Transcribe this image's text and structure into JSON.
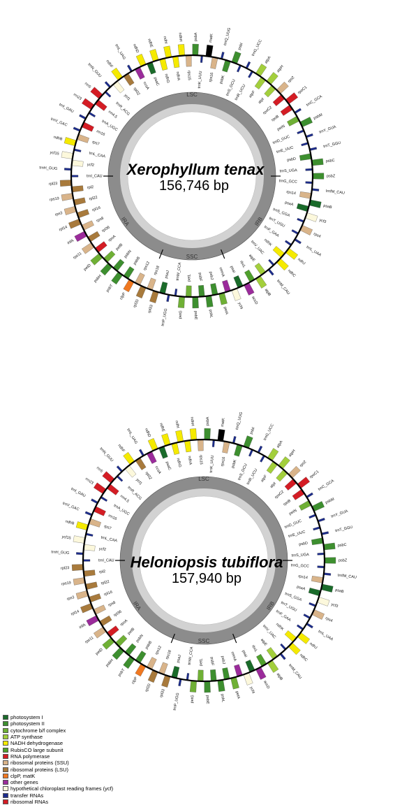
{
  "genomes": [
    {
      "title": "Xerophyllum tenax",
      "size": "156,746 bp",
      "regions": [
        "LSC",
        "IRB",
        "SSC",
        "IRA"
      ],
      "genes": [
        {
          "name": "psbA",
          "cat": "psII"
        },
        {
          "name": "trnK_UUU",
          "cat": "trna"
        },
        {
          "name": "matK",
          "cat": "matk"
        },
        {
          "name": "rps16",
          "cat": "rps"
        },
        {
          "name": "trnQ_UUG",
          "cat": "trna"
        },
        {
          "name": "psbK",
          "cat": "psII"
        },
        {
          "name": "psbI",
          "cat": "psII"
        },
        {
          "name": "trnS_GCU",
          "cat": "trna"
        },
        {
          "name": "trnG_UCC",
          "cat": "trna"
        },
        {
          "name": "trnR_UCU",
          "cat": "trna"
        },
        {
          "name": "atpA",
          "cat": "atp"
        },
        {
          "name": "atpF",
          "cat": "atp"
        },
        {
          "name": "atpH",
          "cat": "atp"
        },
        {
          "name": "atpI",
          "cat": "atp"
        },
        {
          "name": "rps2",
          "cat": "rps"
        },
        {
          "name": "rpoC2",
          "cat": "rpo"
        },
        {
          "name": "rpoC1",
          "cat": "rpo"
        },
        {
          "name": "rpoB",
          "cat": "rpo"
        },
        {
          "name": "trnC_GCA",
          "cat": "trna"
        },
        {
          "name": "petN",
          "cat": "cyt"
        },
        {
          "name": "psbM",
          "cat": "psII"
        },
        {
          "name": "trnD_GUC",
          "cat": "trna"
        },
        {
          "name": "trnY_GUA",
          "cat": "trna"
        },
        {
          "name": "trnE_UUC",
          "cat": "trna"
        },
        {
          "name": "trnT_GGU",
          "cat": "trna"
        },
        {
          "name": "psbD",
          "cat": "psII"
        },
        {
          "name": "psbC",
          "cat": "psII"
        },
        {
          "name": "trnS_UGA",
          "cat": "trna"
        },
        {
          "name": "psbZ",
          "cat": "psII"
        },
        {
          "name": "trnG_GCC",
          "cat": "trna"
        },
        {
          "name": "trnfM_CAU",
          "cat": "trna"
        },
        {
          "name": "rps14",
          "cat": "rps"
        },
        {
          "name": "psaB",
          "cat": "psI"
        },
        {
          "name": "psaA",
          "cat": "psI"
        },
        {
          "name": "ycf3",
          "cat": "ycf"
        },
        {
          "name": "trnS_GGA",
          "cat": "trna"
        },
        {
          "name": "rps4",
          "cat": "rps"
        },
        {
          "name": "trnT_UGU",
          "cat": "trna"
        },
        {
          "name": "trnL_UAA",
          "cat": "trna"
        },
        {
          "name": "trnF_GAA",
          "cat": "trna"
        },
        {
          "name": "ndhJ",
          "cat": "ndh"
        },
        {
          "name": "ndhK",
          "cat": "ndh"
        },
        {
          "name": "ndhC",
          "cat": "ndh"
        },
        {
          "name": "trnV_UAC",
          "cat": "trna"
        },
        {
          "name": "trnM_CAU",
          "cat": "trna"
        },
        {
          "name": "atpE",
          "cat": "atp"
        },
        {
          "name": "atpB",
          "cat": "atp"
        },
        {
          "name": "rbcL",
          "cat": "rbcl"
        },
        {
          "name": "accD",
          "cat": "other"
        },
        {
          "name": "psaI",
          "cat": "psI"
        },
        {
          "name": "ycf4",
          "cat": "ycf"
        },
        {
          "name": "cemA",
          "cat": "other"
        },
        {
          "name": "petA",
          "cat": "cyt"
        },
        {
          "name": "psbJ",
          "cat": "psII"
        },
        {
          "name": "psbL",
          "cat": "psII"
        },
        {
          "name": "psbF",
          "cat": "psII"
        },
        {
          "name": "psbE",
          "cat": "psII"
        },
        {
          "name": "petL",
          "cat": "cyt"
        },
        {
          "name": "petG",
          "cat": "cyt"
        },
        {
          "name": "trnW_CCA",
          "cat": "trna"
        },
        {
          "name": "trnP_UGG",
          "cat": "trna"
        },
        {
          "name": "psaJ",
          "cat": "psI"
        },
        {
          "name": "rpl33",
          "cat": "rpl"
        },
        {
          "name": "rps18",
          "cat": "rps"
        },
        {
          "name": "rpl20",
          "cat": "rpl"
        },
        {
          "name": "rps12",
          "cat": "rps"
        },
        {
          "name": "clpP",
          "cat": "clpp"
        },
        {
          "name": "psbB",
          "cat": "psII"
        },
        {
          "name": "psbT",
          "cat": "psII"
        },
        {
          "name": "psbN",
          "cat": "psII"
        },
        {
          "name": "psbH",
          "cat": "psII"
        },
        {
          "name": "petB",
          "cat": "cyt"
        },
        {
          "name": "petD",
          "cat": "cyt"
        },
        {
          "name": "rpoA",
          "cat": "rpo"
        },
        {
          "name": "rps11",
          "cat": "rps"
        },
        {
          "name": "rpl36",
          "cat": "rpl"
        },
        {
          "name": "infA",
          "cat": "other"
        },
        {
          "name": "rps8",
          "cat": "rps"
        },
        {
          "name": "rpl14",
          "cat": "rpl"
        },
        {
          "name": "rpl16",
          "cat": "rpl"
        },
        {
          "name": "rps3",
          "cat": "rps"
        },
        {
          "name": "rpl22",
          "cat": "rpl"
        },
        {
          "name": "rps19",
          "cat": "rps"
        },
        {
          "name": "rpl2",
          "cat": "rpl"
        },
        {
          "name": "rpl23",
          "cat": "rpl"
        },
        {
          "name": "trnI_CAU",
          "cat": "trna"
        },
        {
          "name": "trnH_GUG",
          "cat": "trna"
        },
        {
          "name": "ycf2",
          "cat": "ycf"
        },
        {
          "name": "ycf15",
          "cat": "ycf"
        },
        {
          "name": "trnL_CAA",
          "cat": "trna"
        },
        {
          "name": "ndhB",
          "cat": "ndh"
        },
        {
          "name": "rps7",
          "cat": "rps"
        },
        {
          "name": "trnV_GAC",
          "cat": "trna"
        },
        {
          "name": "rrn16",
          "cat": "rrna"
        },
        {
          "name": "trnI_GAU",
          "cat": "trna"
        },
        {
          "name": "trnA_UGC",
          "cat": "trna"
        },
        {
          "name": "rrn23",
          "cat": "rrna"
        },
        {
          "name": "rrn4.5",
          "cat": "rrna"
        },
        {
          "name": "rrn5",
          "cat": "rrna"
        },
        {
          "name": "trnR_ACG",
          "cat": "trna"
        },
        {
          "name": "trnN_GUU",
          "cat": "trna"
        },
        {
          "name": "ycf1",
          "cat": "ycf"
        },
        {
          "name": "ndhF",
          "cat": "ndh"
        },
        {
          "name": "rpl32",
          "cat": "rpl"
        },
        {
          "name": "trnL_UAG",
          "cat": "trna"
        },
        {
          "name": "ccsA",
          "cat": "other"
        },
        {
          "name": "ndhD",
          "cat": "ndh"
        },
        {
          "name": "psaC",
          "cat": "psI"
        },
        {
          "name": "ndhE",
          "cat": "ndh"
        },
        {
          "name": "ndhG",
          "cat": "ndh"
        },
        {
          "name": "ndhI",
          "cat": "ndh"
        },
        {
          "name": "ndhA",
          "cat": "ndh"
        },
        {
          "name": "ndhH",
          "cat": "ndh"
        },
        {
          "name": "rps15",
          "cat": "rps"
        }
      ]
    },
    {
      "title": "Heloniopsis tubiflora",
      "size": "157,940 bp",
      "regions": [
        "LSC",
        "IRB",
        "SSC",
        "IRA"
      ],
      "genes": [
        {
          "name": "psbA",
          "cat": "psII"
        },
        {
          "name": "trnK_UUU",
          "cat": "trna"
        },
        {
          "name": "matK",
          "cat": "matk"
        },
        {
          "name": "rps16",
          "cat": "rps"
        },
        {
          "name": "trnQ_UUG",
          "cat": "trna"
        },
        {
          "name": "psbK",
          "cat": "psII"
        },
        {
          "name": "psbI",
          "cat": "psII"
        },
        {
          "name": "trnS_GCU",
          "cat": "trna"
        },
        {
          "name": "trnG_UCC",
          "cat": "trna"
        },
        {
          "name": "trnR_UCU",
          "cat": "trna"
        },
        {
          "name": "atpA",
          "cat": "atp"
        },
        {
          "name": "atpF",
          "cat": "atp"
        },
        {
          "name": "atpH",
          "cat": "atp"
        },
        {
          "name": "atpI",
          "cat": "atp"
        },
        {
          "name": "rps2",
          "cat": "rps"
        },
        {
          "name": "rpoC2",
          "cat": "rpo"
        },
        {
          "name": "rpoC1",
          "cat": "rpo"
        },
        {
          "name": "rpoB",
          "cat": "rpo"
        },
        {
          "name": "trnC_GCA",
          "cat": "trna"
        },
        {
          "name": "petN",
          "cat": "cyt"
        },
        {
          "name": "psbM",
          "cat": "psII"
        },
        {
          "name": "trnD_GUC",
          "cat": "trna"
        },
        {
          "name": "trnY_GUA",
          "cat": "trna"
        },
        {
          "name": "trnE_UUC",
          "cat": "trna"
        },
        {
          "name": "trnT_GGU",
          "cat": "trna"
        },
        {
          "name": "psbD",
          "cat": "psII"
        },
        {
          "name": "psbC",
          "cat": "psII"
        },
        {
          "name": "trnS_UGA",
          "cat": "trna"
        },
        {
          "name": "psbZ",
          "cat": "psII"
        },
        {
          "name": "trnG_GCC",
          "cat": "trna"
        },
        {
          "name": "trnfM_CAU",
          "cat": "trna"
        },
        {
          "name": "rps14",
          "cat": "rps"
        },
        {
          "name": "psaB",
          "cat": "psI"
        },
        {
          "name": "psaA",
          "cat": "psI"
        },
        {
          "name": "ycf3",
          "cat": "ycf"
        },
        {
          "name": "trnS_GGA",
          "cat": "trna"
        },
        {
          "name": "rps4",
          "cat": "rps"
        },
        {
          "name": "trnT_UGU",
          "cat": "trna"
        },
        {
          "name": "trnL_UAA",
          "cat": "trna"
        },
        {
          "name": "trnF_GAA",
          "cat": "trna"
        },
        {
          "name": "ndhJ",
          "cat": "ndh"
        },
        {
          "name": "ndhK",
          "cat": "ndh"
        },
        {
          "name": "ndhC",
          "cat": "ndh"
        },
        {
          "name": "trnV_UAC",
          "cat": "trna"
        },
        {
          "name": "trnM_CAU",
          "cat": "trna"
        },
        {
          "name": "atpE",
          "cat": "atp"
        },
        {
          "name": "atpB",
          "cat": "atp"
        },
        {
          "name": "rbcL",
          "cat": "rbcl"
        },
        {
          "name": "accD",
          "cat": "other"
        },
        {
          "name": "psaI",
          "cat": "psI"
        },
        {
          "name": "ycf4",
          "cat": "ycf"
        },
        {
          "name": "cemA",
          "cat": "other"
        },
        {
          "name": "petA",
          "cat": "cyt"
        },
        {
          "name": "psbJ",
          "cat": "psII"
        },
        {
          "name": "psbL",
          "cat": "psII"
        },
        {
          "name": "psbF",
          "cat": "psII"
        },
        {
          "name": "psbE",
          "cat": "psII"
        },
        {
          "name": "petL",
          "cat": "cyt"
        },
        {
          "name": "petG",
          "cat": "cyt"
        },
        {
          "name": "trnW_CCA",
          "cat": "trna"
        },
        {
          "name": "trnP_UGG",
          "cat": "trna"
        },
        {
          "name": "psaJ",
          "cat": "psI"
        },
        {
          "name": "rpl33",
          "cat": "rpl"
        },
        {
          "name": "rps18",
          "cat": "rps"
        },
        {
          "name": "rpl20",
          "cat": "rpl"
        },
        {
          "name": "rps12",
          "cat": "rps"
        },
        {
          "name": "clpP",
          "cat": "clpp"
        },
        {
          "name": "psbB",
          "cat": "psII"
        },
        {
          "name": "psbT",
          "cat": "psII"
        },
        {
          "name": "psbN",
          "cat": "psII"
        },
        {
          "name": "psbH",
          "cat": "psII"
        },
        {
          "name": "petB",
          "cat": "cyt"
        },
        {
          "name": "petD",
          "cat": "cyt"
        },
        {
          "name": "rpoA",
          "cat": "rpo"
        },
        {
          "name": "rps11",
          "cat": "rps"
        },
        {
          "name": "rpl36",
          "cat": "rpl"
        },
        {
          "name": "infA",
          "cat": "other"
        },
        {
          "name": "rps8",
          "cat": "rps"
        },
        {
          "name": "rpl14",
          "cat": "rpl"
        },
        {
          "name": "rpl16",
          "cat": "rpl"
        },
        {
          "name": "rps3",
          "cat": "rps"
        },
        {
          "name": "rpl22",
          "cat": "rpl"
        },
        {
          "name": "rps19",
          "cat": "rps"
        },
        {
          "name": "rpl2",
          "cat": "rpl"
        },
        {
          "name": "rpl23",
          "cat": "rpl"
        },
        {
          "name": "trnI_CAU",
          "cat": "trna"
        },
        {
          "name": "trnH_GUG",
          "cat": "trna"
        },
        {
          "name": "ycf2",
          "cat": "ycf"
        },
        {
          "name": "ycf15",
          "cat": "ycf"
        },
        {
          "name": "trnL_CAA",
          "cat": "trna"
        },
        {
          "name": "ndhB",
          "cat": "ndh"
        },
        {
          "name": "rps7",
          "cat": "rps"
        },
        {
          "name": "trnV_GAC",
          "cat": "trna"
        },
        {
          "name": "rrn16",
          "cat": "rrna"
        },
        {
          "name": "trnI_GAU",
          "cat": "trna"
        },
        {
          "name": "trnA_UGC",
          "cat": "trna"
        },
        {
          "name": "rrn23",
          "cat": "rrna"
        },
        {
          "name": "rrn4.5",
          "cat": "rrna"
        },
        {
          "name": "rrn5",
          "cat": "rrna"
        },
        {
          "name": "trnR_ACG",
          "cat": "trna"
        },
        {
          "name": "trnN_GUU",
          "cat": "trna"
        },
        {
          "name": "ycf1",
          "cat": "ycf"
        },
        {
          "name": "ndhF",
          "cat": "ndh"
        },
        {
          "name": "rpl32",
          "cat": "rpl"
        },
        {
          "name": "trnL_UAG",
          "cat": "trna"
        },
        {
          "name": "ccsA",
          "cat": "other"
        },
        {
          "name": "ndhD",
          "cat": "ndh"
        },
        {
          "name": "psaC",
          "cat": "psI"
        },
        {
          "name": "ndhE",
          "cat": "ndh"
        },
        {
          "name": "ndhG",
          "cat": "ndh"
        },
        {
          "name": "ndhI",
          "cat": "ndh"
        },
        {
          "name": "ndhA",
          "cat": "ndh"
        },
        {
          "name": "ndhH",
          "cat": "ndh"
        },
        {
          "name": "rps15",
          "cat": "rps"
        }
      ]
    }
  ],
  "legend": [
    {
      "key": "psI",
      "label": "photosystem I",
      "color": "#1a6b2a"
    },
    {
      "key": "psII",
      "label": "photosystem II",
      "color": "#3d8f2f"
    },
    {
      "key": "cyt",
      "label": "cytochrome b/f complex",
      "color": "#6fb035"
    },
    {
      "key": "atp",
      "label": "ATP synthase",
      "color": "#a3cf3c"
    },
    {
      "key": "ndh",
      "label": "NADH dehydrogenase",
      "color": "#f5ea00"
    },
    {
      "key": "rbcl",
      "label": "RubisCO large subunit",
      "color": "#4fa02c"
    },
    {
      "key": "rpo",
      "label": "RNA polymerase",
      "color": "#d41c24"
    },
    {
      "key": "rps",
      "label": "ribosomal proteins (SSU)",
      "color": "#d9b48a"
    },
    {
      "key": "rpl",
      "label": "ribosomal proteins (LSU)",
      "color": "#a87a3c"
    },
    {
      "key": "clpp",
      "label": "clpP, matK",
      "color": "#f07820"
    },
    {
      "key": "other",
      "label": "other genes",
      "color": "#9b2b9b"
    },
    {
      "key": "ycf",
      "label": "hypothetical chloroplast reading frames (ycf)",
      "color": "#fcf8dc"
    },
    {
      "key": "trna",
      "label": "transfer RNAs",
      "color": "#1c2c8c"
    },
    {
      "key": "rrna",
      "label": "ribosomal RNAs",
      "color": "#d41c24"
    }
  ]
}
